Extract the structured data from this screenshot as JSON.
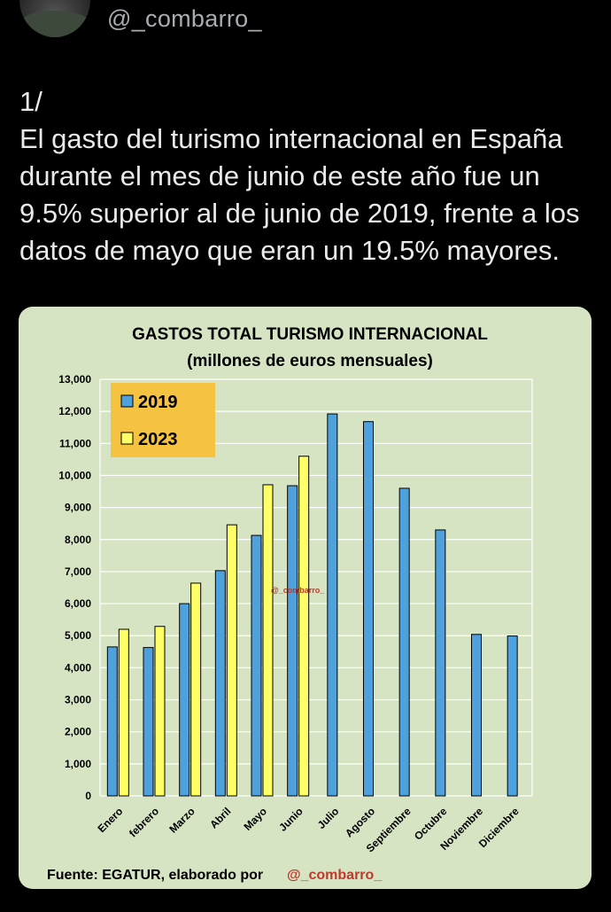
{
  "tweet": {
    "handle": "@_combarro_",
    "lines": [
      "1/",
      "El gasto del turismo internacional en España",
      "durante el mes de junio de este año fue un",
      "9.5% superior al de junio de 2019, frente a los",
      "datos de mayo que eran un 19.5% mayores."
    ]
  },
  "chart_data": {
    "type": "bar",
    "title": "GASTOS TOTAL TURISMO INTERNACIONAL",
    "subtitle": "(millones de euros mensuales)",
    "categories": [
      "Enero",
      "febrero",
      "Marzo",
      "Abril",
      "Mayo",
      "Junio",
      "Julio",
      "Agosto",
      "Septiembre",
      "Octubre",
      "Noviembre",
      "Diciembre"
    ],
    "series": [
      {
        "name": "2019",
        "color": "#4ea1dc",
        "values": [
          4650,
          4630,
          6000,
          7030,
          8130,
          9680,
          11920,
          11680,
          9600,
          8300,
          5040,
          4990
        ]
      },
      {
        "name": "2023",
        "color": "#ffff66",
        "values": [
          5200,
          5290,
          6640,
          8460,
          9710,
          10600,
          null,
          null,
          null,
          null,
          null,
          null
        ]
      }
    ],
    "ylim": [
      0,
      13000
    ],
    "yticks": [
      0,
      1000,
      2000,
      3000,
      4000,
      5000,
      6000,
      7000,
      8000,
      9000,
      10000,
      11000,
      12000,
      13000
    ],
    "ytick_labels": [
      "0",
      "1,000",
      "2,000",
      "3,000",
      "4,000",
      "5,000",
      "6,000",
      "7,000",
      "8,000",
      "9,000",
      "10,000",
      "11,000",
      "12,000",
      "13,000"
    ],
    "grid": true,
    "legend_position": "top-left",
    "legend_bg": "#f5c242",
    "watermark": "@_combarro_",
    "footer": {
      "source": "Fuente: EGATUR, elaborado por",
      "author": "@_combarro_"
    }
  }
}
